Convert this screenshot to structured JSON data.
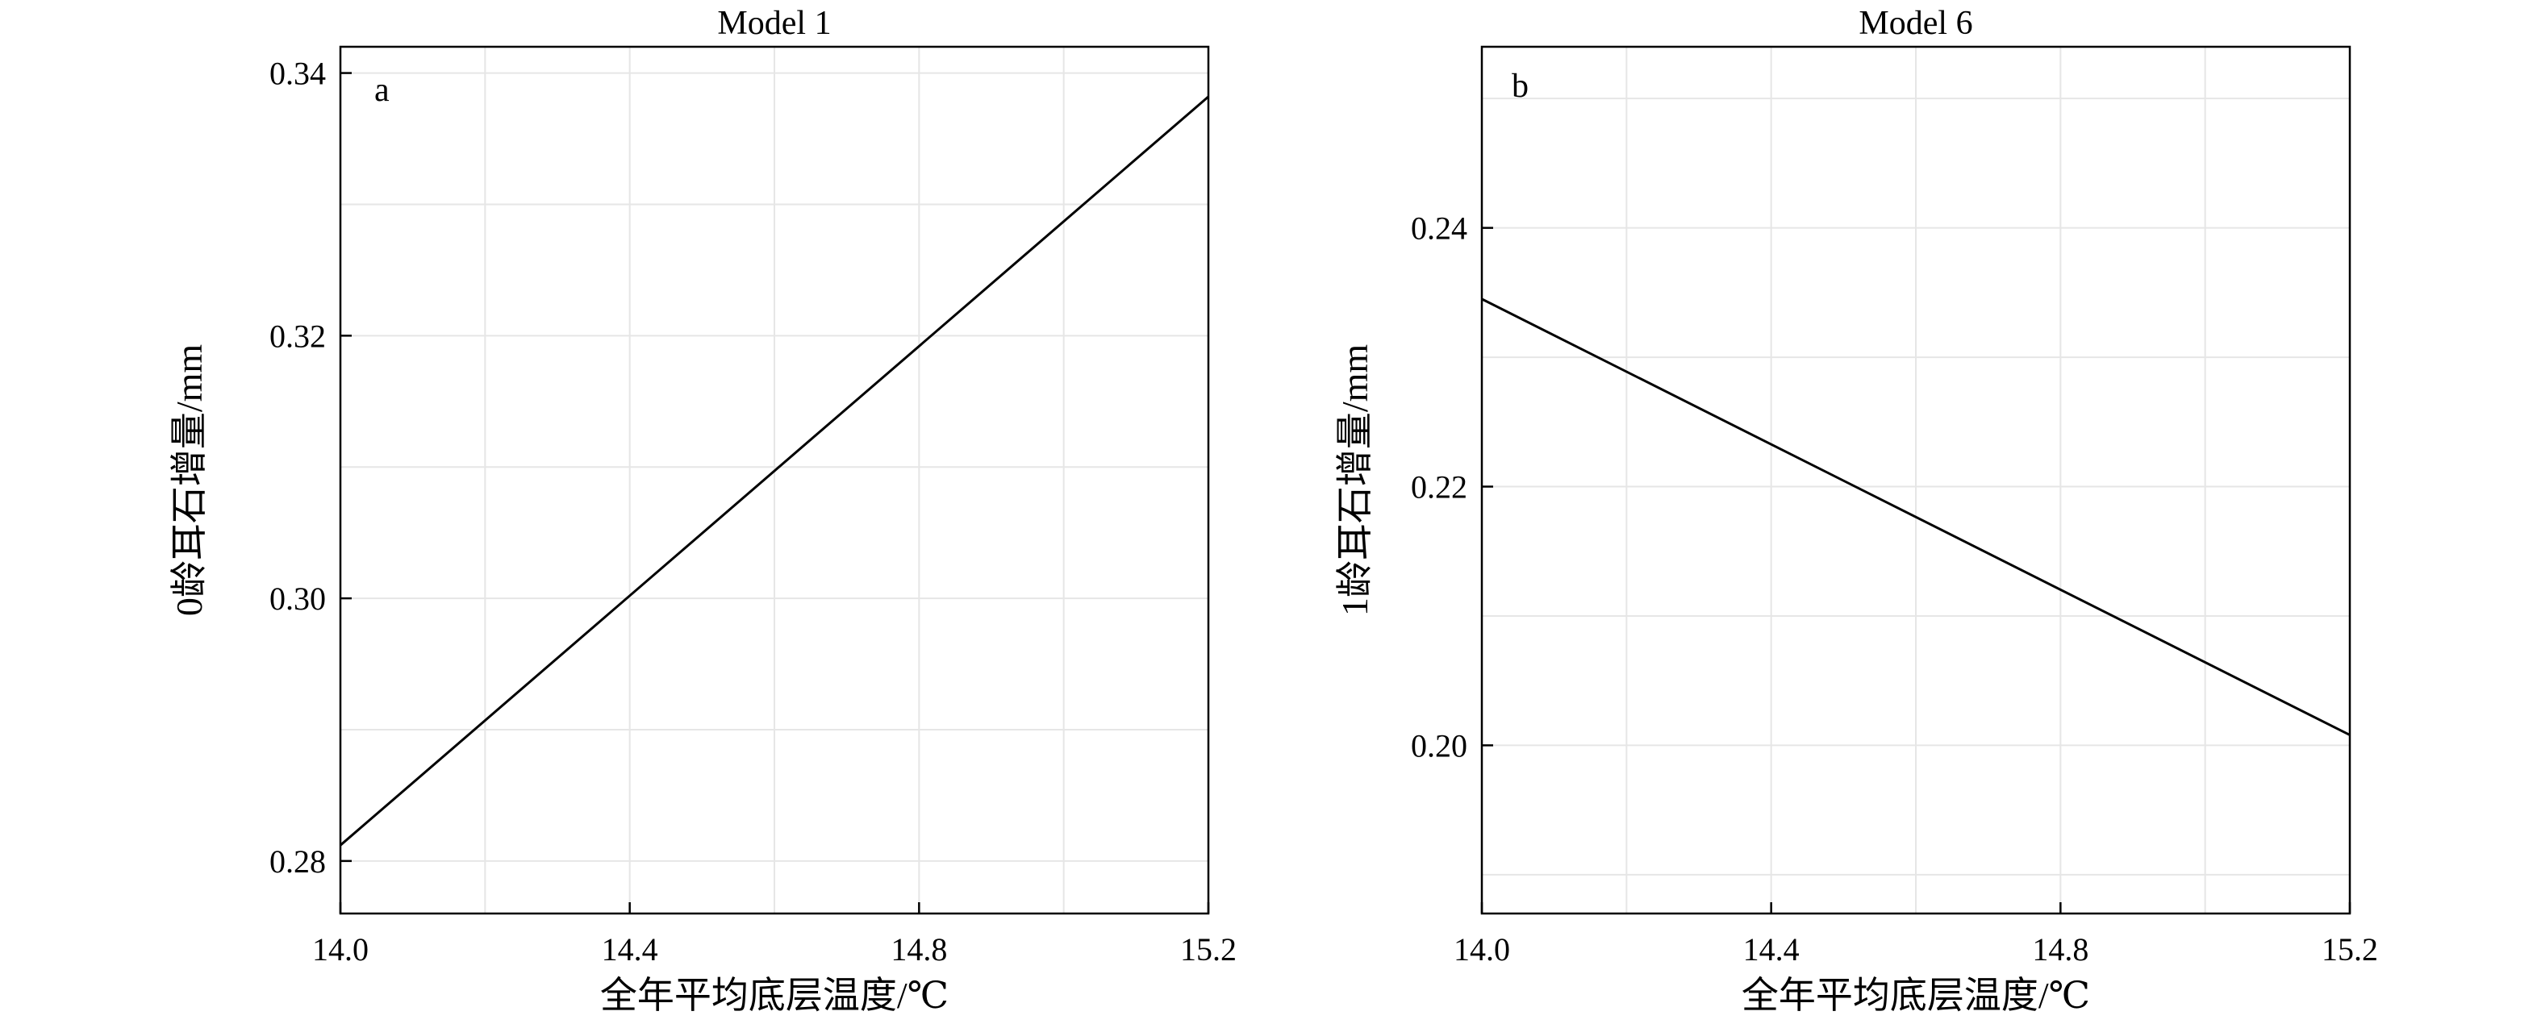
{
  "chart_data": [
    {
      "type": "line",
      "title": "Model 1",
      "panel_label": "a",
      "xlabel": "全年平均底层温度/℃",
      "ylabel": "0龄耳石增量/mm",
      "xlim": [
        14.0,
        15.2
      ],
      "ylim": [
        0.276,
        0.342
      ],
      "xticks": [
        14.0,
        14.4,
        14.8,
        15.2
      ],
      "xtick_labels": [
        "14.0",
        "14.4",
        "14.8",
        "15.2"
      ],
      "yticks": [
        0.28,
        0.3,
        0.32,
        0.34
      ],
      "ytick_labels": [
        "0.28",
        "0.30",
        "0.32",
        "0.34"
      ],
      "grid": true,
      "series": [
        {
          "x": [
            14.0,
            15.2
          ],
          "y": [
            0.2812,
            0.3382
          ]
        }
      ]
    },
    {
      "type": "line",
      "title": "Model 6",
      "panel_label": "b",
      "xlabel": "全年平均底层温度/℃",
      "ylabel": "1龄耳石增量/mm",
      "xlim": [
        14.0,
        15.2
      ],
      "ylim": [
        0.187,
        0.254
      ],
      "xticks": [
        14.0,
        14.4,
        14.8,
        15.2
      ],
      "xtick_labels": [
        "14.0",
        "14.4",
        "14.8",
        "15.2"
      ],
      "yticks": [
        0.2,
        0.22,
        0.24
      ],
      "ytick_labels": [
        "0.20",
        "0.22",
        "0.24"
      ],
      "grid": true,
      "series": [
        {
          "x": [
            14.0,
            15.2
          ],
          "y": [
            0.2345,
            0.2008
          ]
        }
      ]
    }
  ]
}
